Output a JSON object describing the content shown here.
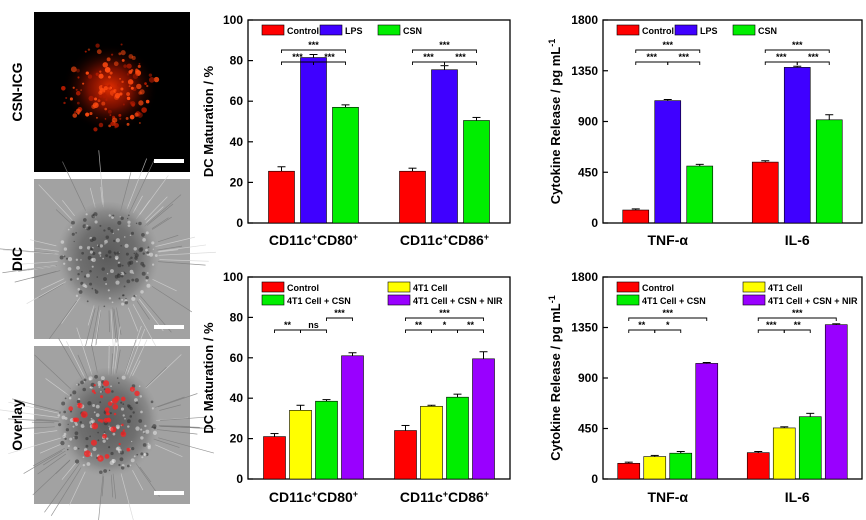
{
  "micrographs": [
    {
      "label": "CSN-ICG"
    },
    {
      "label": "DIC"
    },
    {
      "label": "Overlay"
    }
  ],
  "chart_data": [
    {
      "type": "bar",
      "ylabel": "DC Maturation / %",
      "ylim": [
        0,
        100
      ],
      "yticks": [
        0,
        20,
        40,
        60,
        80,
        100
      ],
      "groups": [
        {
          "sup_a": "+",
          "sup_b": "+",
          "base_a": "CD11c",
          "base_b": "CD80"
        },
        {
          "sup_a": "+",
          "sup_b": "+",
          "base_a": "CD11c",
          "base_b": "CD86"
        }
      ],
      "series": [
        {
          "name": "Control",
          "color": "#ff0000",
          "values": [
            25.5,
            25.5
          ],
          "errors": [
            2.2,
            1.5
          ]
        },
        {
          "name": "LPS",
          "color": "#3f00ff",
          "values": [
            81.5,
            75.5
          ],
          "errors": [
            1.5,
            2.0
          ]
        },
        {
          "name": "CSN",
          "color": "#00ee00",
          "values": [
            57,
            50.5
          ],
          "errors": [
            1.2,
            1.5
          ]
        }
      ],
      "legend_cols": 3,
      "significance": [
        {
          "group": 0,
          "from": 0,
          "to": 1,
          "label": "***",
          "level": 1
        },
        {
          "group": 0,
          "from": 1,
          "to": 2,
          "label": "***",
          "level": 1
        },
        {
          "group": 0,
          "from": 0,
          "to": 2,
          "label": "***",
          "level": 2
        },
        {
          "group": 1,
          "from": 0,
          "to": 1,
          "label": "***",
          "level": 1
        },
        {
          "group": 1,
          "from": 1,
          "to": 2,
          "label": "***",
          "level": 1
        },
        {
          "group": 1,
          "from": 0,
          "to": 2,
          "label": "***",
          "level": 2
        }
      ]
    },
    {
      "type": "bar",
      "ylabel": "Cytokine Release / pg mL",
      "ylabel_sup": "-1",
      "ylim": [
        0,
        1800
      ],
      "yticks": [
        0,
        450,
        900,
        1350,
        1800
      ],
      "groups": [
        {
          "text": "TNF-α"
        },
        {
          "text": "IL-6"
        }
      ],
      "series": [
        {
          "name": "Control",
          "color": "#ff0000",
          "values": [
            115,
            540
          ],
          "errors": [
            10,
            12
          ]
        },
        {
          "name": "LPS",
          "color": "#3f00ff",
          "values": [
            1085,
            1380
          ],
          "errors": [
            10,
            10
          ]
        },
        {
          "name": "CSN",
          "color": "#00ee00",
          "values": [
            505,
            915
          ],
          "errors": [
            15,
            45
          ]
        }
      ],
      "legend_cols": 3,
      "significance": [
        {
          "group": 0,
          "from": 0,
          "to": 1,
          "label": "***",
          "level": 1
        },
        {
          "group": 0,
          "from": 1,
          "to": 2,
          "label": "***",
          "level": 1
        },
        {
          "group": 0,
          "from": 0,
          "to": 2,
          "label": "***",
          "level": 2
        },
        {
          "group": 1,
          "from": 0,
          "to": 1,
          "label": "***",
          "level": 1
        },
        {
          "group": 1,
          "from": 1,
          "to": 2,
          "label": "***",
          "level": 1
        },
        {
          "group": 1,
          "from": 0,
          "to": 2,
          "label": "***",
          "level": 2
        }
      ]
    },
    {
      "type": "bar",
      "ylabel": "DC Maturation / %",
      "ylim": [
        0,
        100
      ],
      "yticks": [
        0,
        20,
        40,
        60,
        80,
        100
      ],
      "groups": [
        {
          "sup_a": "+",
          "sup_b": "+",
          "base_a": "CD11c",
          "base_b": "CD80"
        },
        {
          "sup_a": "+",
          "sup_b": "+",
          "base_a": "CD11c",
          "base_b": "CD86"
        }
      ],
      "series": [
        {
          "name": "Control",
          "color": "#ff0000",
          "values": [
            21,
            24
          ],
          "errors": [
            1.5,
            2.5
          ]
        },
        {
          "name": "4T1 Cell",
          "color": "#ffff00",
          "values": [
            34,
            36
          ],
          "errors": [
            2.5,
            0.5
          ]
        },
        {
          "name": "4T1 Cell + CSN",
          "color": "#00ee00",
          "values": [
            38.5,
            40.5
          ],
          "errors": [
            0.8,
            1.5
          ]
        },
        {
          "name": "4T1 Cell + CSN + NIR",
          "color": "#9900ff",
          "values": [
            61,
            59.5
          ],
          "errors": [
            1.5,
            3.5
          ]
        }
      ],
      "legend_cols": 2,
      "significance": [
        {
          "group": 0,
          "from": 0,
          "to": 1,
          "label": "**",
          "level": 1
        },
        {
          "group": 0,
          "from": 1,
          "to": 2,
          "label": "ns",
          "level": 1
        },
        {
          "group": 0,
          "from": 2,
          "to": 3,
          "label": "***",
          "level": 2
        },
        {
          "group": 1,
          "from": 0,
          "to": 1,
          "label": "**",
          "level": 1
        },
        {
          "group": 1,
          "from": 1,
          "to": 2,
          "label": "*",
          "level": 1
        },
        {
          "group": 1,
          "from": 2,
          "to": 3,
          "label": "**",
          "level": 1
        },
        {
          "group": 1,
          "from": 0,
          "to": 3,
          "label": "***",
          "level": 2
        }
      ]
    },
    {
      "type": "bar",
      "ylabel": "Cytokine Release / pg mL",
      "ylabel_sup": "-1",
      "ylim": [
        0,
        1800
      ],
      "yticks": [
        0,
        450,
        900,
        1350,
        1800
      ],
      "groups": [
        {
          "text": "TNF-α"
        },
        {
          "text": "IL-6"
        }
      ],
      "series": [
        {
          "name": "Control",
          "color": "#ff0000",
          "values": [
            140,
            235
          ],
          "errors": [
            10,
            10
          ]
        },
        {
          "name": "4T1 Cell",
          "color": "#ffff00",
          "values": [
            200,
            455
          ],
          "errors": [
            10,
            10
          ]
        },
        {
          "name": "4T1 Cell + CSN",
          "color": "#00ee00",
          "values": [
            230,
            555
          ],
          "errors": [
            15,
            30
          ]
        },
        {
          "name": "4T1 Cell + CSN + NIR",
          "color": "#9900ff",
          "values": [
            1030,
            1375
          ],
          "errors": [
            8,
            8
          ]
        }
      ],
      "legend_cols": 2,
      "significance": [
        {
          "group": 0,
          "from": 0,
          "to": 1,
          "label": "**",
          "level": 1
        },
        {
          "group": 0,
          "from": 1,
          "to": 2,
          "label": "*",
          "level": 1
        },
        {
          "group": 0,
          "from": 0,
          "to": 3,
          "label": "***",
          "level": 2
        },
        {
          "group": 1,
          "from": 0,
          "to": 1,
          "label": "***",
          "level": 1
        },
        {
          "group": 1,
          "from": 1,
          "to": 2,
          "label": "**",
          "level": 1
        },
        {
          "group": 1,
          "from": 0,
          "to": 3,
          "label": "***",
          "level": 2
        }
      ]
    }
  ]
}
